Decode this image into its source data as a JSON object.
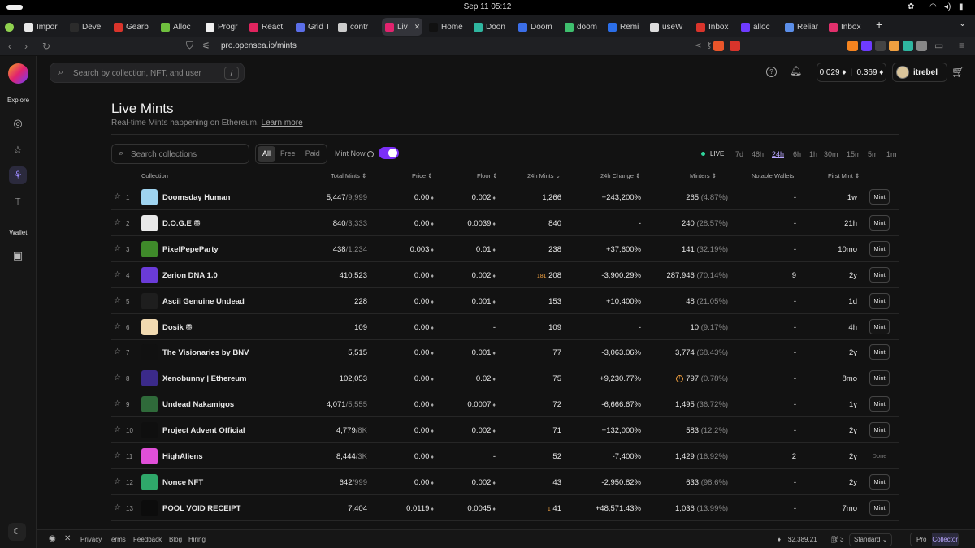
{
  "system": {
    "clock": "Sep 11  05:12"
  },
  "tabs": [
    {
      "label": "Impor",
      "color": "#e8e8e8"
    },
    {
      "label": "Devel",
      "color": "#2b2b2b"
    },
    {
      "label": "Gearb",
      "color": "#d9342b"
    },
    {
      "label": "Alloc",
      "color": "#6fbf3e"
    },
    {
      "label": "Progr",
      "color": "#f0f0f0"
    },
    {
      "label": "React",
      "color": "#e0245e"
    },
    {
      "label": "Grid T",
      "color": "#5b6ee8"
    },
    {
      "label": "contr",
      "color": "#cccccc"
    },
    {
      "label": "Liv",
      "color": "#e2236e"
    },
    {
      "label": "Home",
      "color": "#111111"
    },
    {
      "label": "Doon",
      "color": "#2fb6a0"
    },
    {
      "label": "Doom",
      "color": "#3b6ee8"
    },
    {
      "label": "doom",
      "color": "#3fbf6e"
    },
    {
      "label": "Remi",
      "color": "#2b6ee8"
    },
    {
      "label": "useW",
      "color": "#dddddd"
    },
    {
      "label": "Inbox",
      "color": "#d9342b"
    },
    {
      "label": "alloc",
      "color": "#6e3bff"
    },
    {
      "label": "Reliar",
      "color": "#5b8ee8"
    },
    {
      "label": "Inbox",
      "color": "#e1306c"
    }
  ],
  "address": {
    "url": "pro.opensea.io/mints"
  },
  "sidebar": {
    "explore_label": "Explore",
    "wallet_label": "Wallet"
  },
  "topbar": {
    "search_placeholder": "Search by collection, NFT, and user",
    "search_shortcut": "/",
    "balance_eth": "0.029 ♦",
    "balance_weth": "0.369 ♦",
    "username": "itrebel"
  },
  "page": {
    "title": "Live Mints",
    "subtitle": "Real-time Mints happening on Ethereum.",
    "learn_more": "Learn more"
  },
  "filters": {
    "search_placeholder": "Search collections",
    "segments": [
      "All",
      "Free",
      "Paid"
    ],
    "mint_now_label": "Mint Now",
    "live_label": "LIVE",
    "timeframes": [
      "7d",
      "48h",
      "24h",
      "6h",
      "1h",
      "30m",
      "15m",
      "5m",
      "1m"
    ],
    "active_timeframe": "24h"
  },
  "columns": {
    "collection": "Collection",
    "total_mints": "Total Mints",
    "price": "Price",
    "floor": "Floor",
    "mints_24h": "24h Mints",
    "change_24h": "24h Change",
    "minters": "Minters",
    "notable_wallets": "Notable Wallets",
    "first_mint": "First Mint"
  },
  "rows": [
    {
      "rank": "1",
      "name": "Doomsday Human",
      "img": "#9fd4f0",
      "total": "5,447",
      "cap": "/9,999",
      "price": "0.00",
      "floor": "0.002",
      "mints": "1,266",
      "change": "+243,200%",
      "dir": "pos",
      "minters": "265",
      "minters_pct": "(4.87%)",
      "wallets": "-",
      "first": "1w",
      "action": "Mint"
    },
    {
      "rank": "2",
      "name": "D.O.G.E ⛃",
      "img": "#e9e9e9",
      "total": "840",
      "cap": "/3,333",
      "price": "0.00",
      "floor": "0.0039",
      "mints": "840",
      "change": "-",
      "dir": "",
      "minters": "240",
      "minters_pct": "(28.57%)",
      "wallets": "-",
      "first": "21h",
      "action": "Mint"
    },
    {
      "rank": "3",
      "name": "PixelPepeParty",
      "img": "#3f8a2a",
      "total": "438",
      "cap": "/1,234",
      "price": "0.003",
      "floor": "0.01",
      "mints": "238",
      "change": "+37,600%",
      "dir": "pos",
      "minters": "141",
      "minters_pct": "(32.19%)",
      "wallets": "-",
      "first": "10mo",
      "action": "Mint"
    },
    {
      "rank": "4",
      "name": "Zerion DNA 1.0",
      "img": "#6a3bd8",
      "total": "410,523",
      "cap": "",
      "price": "0.00",
      "floor": "0.002",
      "mints": "208",
      "flag": "181",
      "change": "-3,900.29%",
      "dir": "neg",
      "minters": "287,946",
      "minters_pct": "(70.14%)",
      "wallets": "9",
      "first": "2y",
      "action": "Mint"
    },
    {
      "rank": "5",
      "name": "Ascii Genuine Undead",
      "img": "#1e1e1e",
      "total": "228",
      "cap": "",
      "price": "0.00",
      "floor": "0.001",
      "mints": "153",
      "change": "+10,400%",
      "dir": "pos",
      "minters": "48",
      "minters_pct": "(21.05%)",
      "wallets": "-",
      "first": "1d",
      "action": "Mint"
    },
    {
      "rank": "6",
      "name": "Dosik ⛃",
      "img": "#f0d9b0",
      "total": "109",
      "cap": "",
      "price": "0.00",
      "floor": "-",
      "mints": "109",
      "change": "-",
      "dir": "",
      "minters": "10",
      "minters_pct": "(9.17%)",
      "wallets": "-",
      "first": "4h",
      "action": "Mint"
    },
    {
      "rank": "7",
      "name": "The Visionaries by BNV",
      "img": "#111111",
      "total": "5,515",
      "cap": "",
      "price": "0.00",
      "floor": "0.001",
      "mints": "77",
      "change": "-3,063.06%",
      "dir": "neg",
      "minters": "3,774",
      "minters_pct": "(68.43%)",
      "wallets": "-",
      "first": "2y",
      "action": "Mint"
    },
    {
      "rank": "8",
      "name": "Xenobunny | Ethereum",
      "img": "#3b2a8a",
      "total": "102,053",
      "cap": "",
      "price": "0.00",
      "floor": "0.02",
      "mints": "75",
      "change": "+9,230.77%",
      "dir": "pos",
      "warn": "!",
      "minters": "797",
      "minters_pct": "(0.78%)",
      "wallets": "-",
      "first": "8mo",
      "action": "Mint"
    },
    {
      "rank": "9",
      "name": "Undead Nakamigos",
      "img": "#2f6a3a",
      "total": "4,071",
      "cap": "/5,555",
      "price": "0.00",
      "floor": "0.0007",
      "mints": "72",
      "change": "-6,666.67%",
      "dir": "neg",
      "minters": "1,495",
      "minters_pct": "(36.72%)",
      "wallets": "-",
      "first": "1y",
      "action": "Mint"
    },
    {
      "rank": "10",
      "name": "Project Advent Official",
      "img": "#0f0f0f",
      "total": "4,779",
      "cap": "/8K",
      "price": "0.00",
      "floor": "0.002",
      "mints": "71",
      "change": "+132,000%",
      "dir": "pos",
      "minters": "583",
      "minters_pct": "(12.2%)",
      "wallets": "-",
      "first": "2y",
      "action": "Mint"
    },
    {
      "rank": "11",
      "name": "HighAliens",
      "img": "#e04fd8",
      "total": "8,444",
      "cap": "/3K",
      "price": "0.00",
      "floor": "-",
      "mints": "52",
      "change": "-7,400%",
      "dir": "neg",
      "minters": "1,429",
      "minters_pct": "(16.92%)",
      "wallets": "2",
      "first": "2y",
      "action": "Done"
    },
    {
      "rank": "12",
      "name": "Nonce NFT",
      "img": "#2fa86a",
      "total": "642",
      "cap": "/999",
      "price": "0.00",
      "floor": "0.002",
      "mints": "43",
      "change": "-2,950.82%",
      "dir": "neg",
      "minters": "633",
      "minters_pct": "(98.6%)",
      "wallets": "-",
      "first": "2y",
      "action": "Mint"
    },
    {
      "rank": "13",
      "name": "POOL VOID RECEIPT",
      "img": "#0c0c0c",
      "total": "7,404",
      "cap": "",
      "price": "0.0119",
      "floor": "0.0045",
      "mints": "41",
      "flag": "1",
      "change": "+48,571.43%",
      "dir": "pos",
      "minters": "1,036",
      "minters_pct": "(13.99%)",
      "wallets": "-",
      "first": "7mo",
      "action": "Mint"
    }
  ],
  "footer": {
    "links": [
      "Privacy",
      "Terms",
      "Feedback",
      "Blog",
      "Hiring"
    ],
    "eth_price": "$2,389.21",
    "gas": "3",
    "mode": "Standard",
    "pro": "Pro",
    "collector": "Collector"
  }
}
